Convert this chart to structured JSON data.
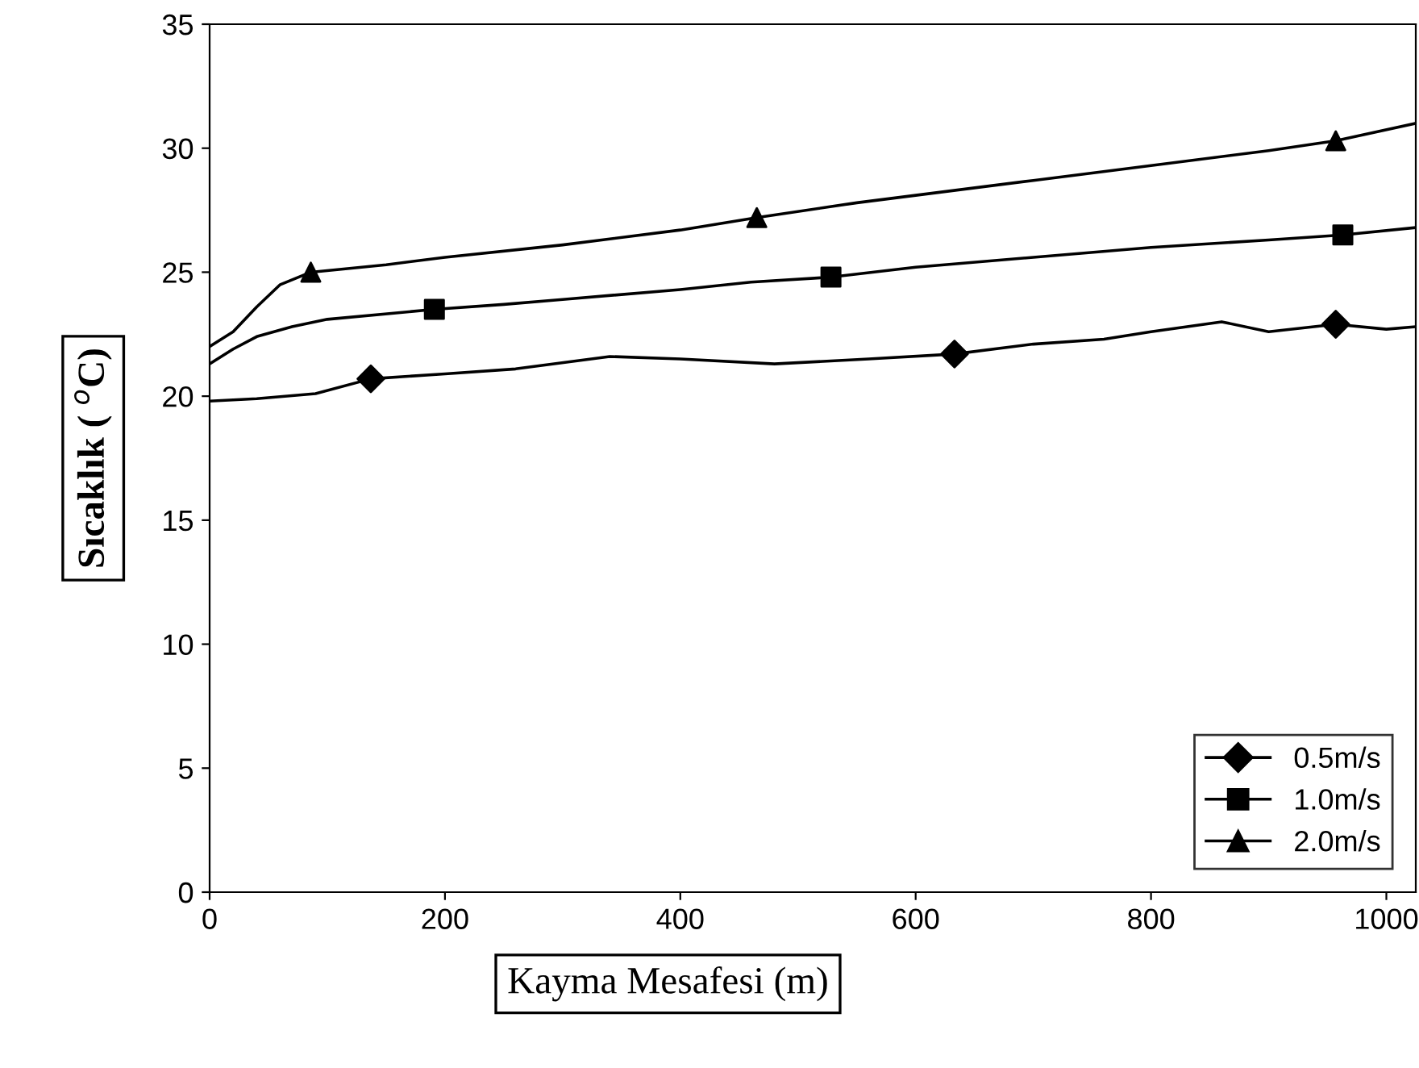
{
  "chart_data": {
    "type": "line",
    "xlabel": "Kayma Mesafesi (m)",
    "ylabel": "Sıcaklık ( $^{o}$C)",
    "xlim": [
      0,
      1025
    ],
    "xticks": [
      0,
      200,
      400,
      600,
      800,
      1000
    ],
    "ylim": [
      0,
      35
    ],
    "yticks": [
      0,
      5,
      10,
      15,
      20,
      25,
      30,
      35
    ],
    "grid": false,
    "legend": "bottom right",
    "line_style": "solid",
    "series": [
      {
        "color": "#000000",
        "marker": "none",
        "x": [
          0,
          40,
          90,
          137,
          200,
          260,
          340,
          400,
          480,
          560,
          633,
          700,
          760,
          800,
          860,
          900,
          957,
          1000,
          1025
        ],
        "values": [
          19.8,
          19.9,
          20.1,
          20.7,
          20.9,
          21.1,
          21.6,
          21.5,
          21.3,
          21.5,
          21.7,
          22.1,
          22.3,
          22.6,
          23.0,
          22.6,
          22.9,
          22.7,
          22.8
        ]
      },
      {
        "color": "#000000",
        "marker": "none",
        "x": [
          0,
          20,
          40,
          70,
          100,
          191,
          250,
          300,
          400,
          460,
          528,
          600,
          700,
          800,
          900,
          963,
          1025
        ],
        "values": [
          21.3,
          21.9,
          22.4,
          22.8,
          23.1,
          23.5,
          23.7,
          23.9,
          24.3,
          24.6,
          24.8,
          25.2,
          25.6,
          26.0,
          26.3,
          26.5,
          26.8
        ]
      },
      {
        "color": "#000000",
        "marker": "none",
        "x": [
          0,
          20,
          40,
          60,
          86,
          150,
          200,
          300,
          400,
          465,
          550,
          600,
          700,
          800,
          900,
          957,
          1025
        ],
        "values": [
          22.0,
          22.6,
          23.6,
          24.5,
          25.0,
          25.3,
          25.6,
          26.1,
          26.7,
          27.2,
          27.8,
          28.1,
          28.7,
          29.3,
          29.9,
          30.3,
          31.0
        ]
      },
      {
        "type": "scatter",
        "name": "0.5m/s",
        "color": "#000000",
        "marker": "diamond",
        "x": [
          137,
          633,
          957
        ],
        "values": [
          20.7,
          21.7,
          22.9
        ]
      },
      {
        "type": "scatter",
        "name": "1.0m/s",
        "color": "#000000",
        "marker": "square",
        "x": [
          191,
          528,
          963
        ],
        "values": [
          23.5,
          24.8,
          26.5
        ]
      },
      {
        "type": "scatter",
        "name": "2.0m/s",
        "color": "#000000",
        "marker": "triangle",
        "x": [
          86,
          465,
          957
        ],
        "values": [
          25.0,
          27.2,
          30.3
        ]
      }
    ]
  }
}
